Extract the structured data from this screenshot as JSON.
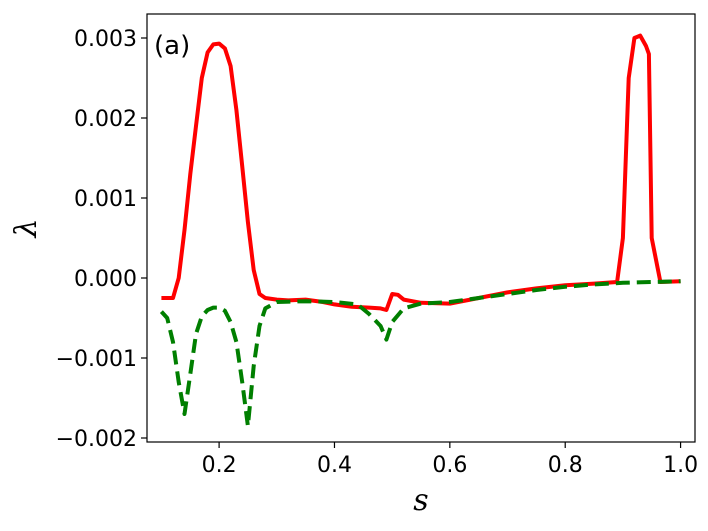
{
  "chart_data": {
    "type": "line",
    "panel_label": "(a)",
    "xlabel": "s",
    "ylabel": "λ",
    "xlim": [
      0.075,
      1.025
    ],
    "ylim": [
      -0.00205,
      0.0033
    ],
    "xticks": [
      0.2,
      0.4,
      0.6,
      0.8,
      1.0
    ],
    "xtick_labels": [
      "0.2",
      "0.4",
      "0.6",
      "0.8",
      "1.0"
    ],
    "yticks": [
      -0.002,
      -0.001,
      0.0,
      0.001,
      0.002,
      0.003
    ],
    "ytick_labels": [
      "−0.002",
      "−0.001",
      "0.000",
      "0.001",
      "0.002",
      "0.003"
    ],
    "grid": false,
    "series": [
      {
        "color": "#ff0000",
        "style": "solid",
        "x": [
          0.1,
          0.12,
          0.13,
          0.14,
          0.15,
          0.16,
          0.17,
          0.18,
          0.19,
          0.2,
          0.21,
          0.22,
          0.23,
          0.24,
          0.25,
          0.26,
          0.27,
          0.28,
          0.3,
          0.32,
          0.35,
          0.38,
          0.4,
          0.43,
          0.46,
          0.48,
          0.49,
          0.5,
          0.51,
          0.52,
          0.55,
          0.6,
          0.65,
          0.7,
          0.75,
          0.8,
          0.85,
          0.89,
          0.9,
          0.91,
          0.92,
          0.93,
          0.94,
          0.945,
          0.95,
          0.965,
          1.0
        ],
        "y": [
          -0.00025,
          -0.00025,
          0.0,
          0.0006,
          0.0013,
          0.0019,
          0.0025,
          0.00282,
          0.00292,
          0.00293,
          0.00287,
          0.00265,
          0.0021,
          0.0014,
          0.0007,
          0.0001,
          -0.0002,
          -0.00025,
          -0.00027,
          -0.00028,
          -0.00027,
          -0.0003,
          -0.00033,
          -0.00036,
          -0.00037,
          -0.00038,
          -0.0004,
          -0.0002,
          -0.00021,
          -0.00027,
          -0.00031,
          -0.00032,
          -0.00025,
          -0.00018,
          -0.00013,
          -9e-05,
          -7e-05,
          -5e-05,
          0.0005,
          0.0025,
          0.003,
          0.00303,
          0.0029,
          0.0028,
          0.0005,
          -5e-05,
          -4e-05
        ]
      },
      {
        "color": "#007f00",
        "style": "dashed",
        "x": [
          0.1,
          0.11,
          0.12,
          0.13,
          0.14,
          0.15,
          0.16,
          0.17,
          0.18,
          0.19,
          0.2,
          0.21,
          0.22,
          0.23,
          0.24,
          0.25,
          0.26,
          0.27,
          0.28,
          0.3,
          0.35,
          0.4,
          0.44,
          0.46,
          0.48,
          0.49,
          0.5,
          0.52,
          0.55,
          0.6,
          0.65,
          0.7,
          0.75,
          0.8,
          0.85,
          0.9,
          0.95,
          1.0
        ],
        "y": [
          -0.00042,
          -0.0005,
          -0.0008,
          -0.0013,
          -0.0017,
          -0.0012,
          -0.0007,
          -0.00048,
          -0.0004,
          -0.00037,
          -0.00037,
          -0.00041,
          -0.00055,
          -0.0008,
          -0.0013,
          -0.00185,
          -0.0011,
          -0.0006,
          -0.00038,
          -0.0003,
          -0.00029,
          -0.0003,
          -0.00033,
          -0.00045,
          -0.0006,
          -0.00077,
          -0.00055,
          -0.00038,
          -0.00032,
          -0.0003,
          -0.00025,
          -0.0002,
          -0.00015,
          -0.00011,
          -8e-05,
          -6e-05,
          -5e-05,
          -4e-05
        ]
      }
    ]
  }
}
